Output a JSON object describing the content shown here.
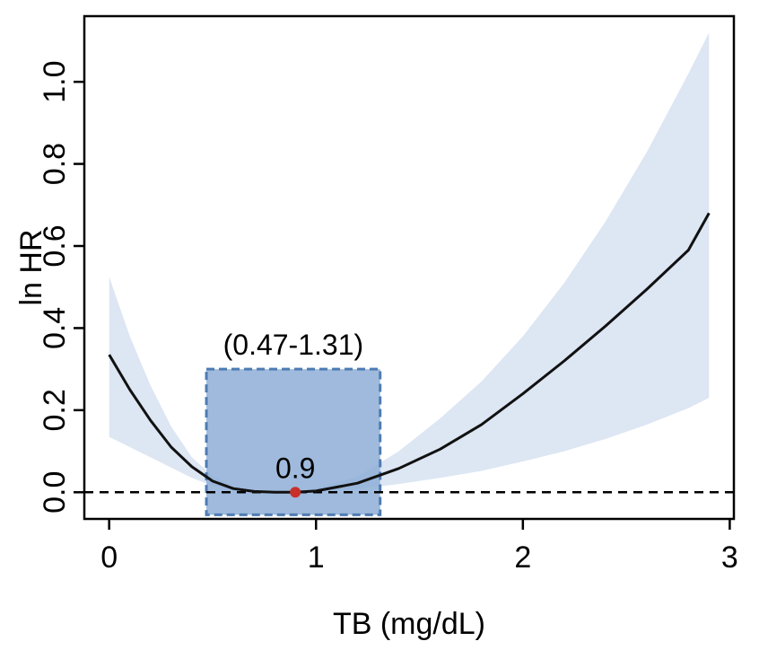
{
  "chart_data": {
    "type": "line",
    "xlabel": "TB (mg/dL)",
    "ylabel": "ln HR",
    "xlim": [
      -0.12,
      3.02
    ],
    "ylim": [
      -0.065,
      1.16
    ],
    "x_ticks": [
      "0",
      "1",
      "2",
      "3"
    ],
    "x_tick_values": [
      0,
      1,
      2,
      3
    ],
    "y_ticks": [
      "0.0",
      "0.2",
      "0.4",
      "0.6",
      "0.8",
      "1.0"
    ],
    "y_tick_values": [
      0,
      0.2,
      0.4,
      0.6,
      0.8,
      1.0
    ],
    "reference_line_y": 0,
    "series": [
      {
        "x": [
          0,
          0.1,
          0.2,
          0.3,
          0.4,
          0.5,
          0.6,
          0.7,
          0.8,
          0.9,
          1.0,
          1.2,
          1.4,
          1.6,
          1.8,
          2.0,
          2.2,
          2.4,
          2.6,
          2.8,
          2.9
        ],
        "y": [
          0.335,
          0.25,
          0.175,
          0.11,
          0.062,
          0.027,
          0.009,
          0.002,
          0.0,
          0.0,
          0.003,
          0.022,
          0.058,
          0.105,
          0.165,
          0.24,
          0.32,
          0.405,
          0.495,
          0.59,
          0.68
        ],
        "ci_lower": [
          0.135,
          0.11,
          0.085,
          0.06,
          0.035,
          0.015,
          0.005,
          0.001,
          0.0,
          0.0,
          0.0,
          0.008,
          0.02,
          0.035,
          0.052,
          0.075,
          0.1,
          0.13,
          0.165,
          0.205,
          0.23
        ],
        "ci_upper": [
          0.525,
          0.38,
          0.26,
          0.16,
          0.085,
          0.04,
          0.015,
          0.005,
          0.001,
          0.0,
          0.01,
          0.038,
          0.1,
          0.18,
          0.27,
          0.38,
          0.51,
          0.66,
          0.83,
          1.02,
          1.12
        ]
      }
    ],
    "annotations": {
      "range_box": {
        "x0": 0.47,
        "x1": 1.31,
        "y0": -0.055,
        "y1": 0.3
      },
      "range_label": "(0.47-1.31)",
      "point": {
        "x": 0.9,
        "y": 0.0
      },
      "point_label": "0.9"
    },
    "colors": {
      "line": "#111111",
      "ci_band": "#dde6f3",
      "box_fill": "#8eaed6",
      "box_border": "#4f7cb3",
      "point": "#c8302a"
    },
    "grid": false
  }
}
